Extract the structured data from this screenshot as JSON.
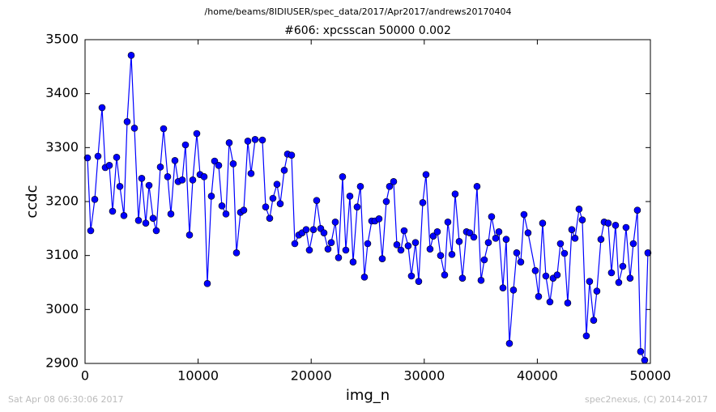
{
  "chart_data": {
    "type": "line",
    "suptitle": "/home/beams/8IDIUSER/spec_data/2017/Apr2017/andrews20170404",
    "title": "#606: xpcsscan 50000 0.002",
    "xlabel": "img_n",
    "ylabel": "ccdc",
    "footer_left": "Sat Apr 08 06:30:06 2017",
    "footer_right": "spec2nexus, (C) 2014-2017",
    "x": [
      215,
      501,
      860,
      1146,
      1504,
      1790,
      2149,
      2435,
      2793,
      3080,
      3438,
      3724,
      4083,
      4369,
      4727,
      5014,
      5372,
      5658,
      6017,
      6303,
      6661,
      6947,
      7306,
      7592,
      7950,
      8237,
      8595,
      8881,
      9240,
      9526,
      9884,
      10171,
      10529,
      10815,
      11173,
      11460,
      11818,
      12104,
      12463,
      12749,
      13108,
      13394,
      13752,
      14038,
      14397,
      14683,
      15041,
      15686,
      15972,
      16331,
      16617,
      16975,
      17262,
      17620,
      17906,
      18265,
      18551,
      18909,
      19196,
      19554,
      19840,
      20199,
      20485,
      20843,
      21130,
      21488,
      21774,
      22132,
      22419,
      22777,
      23063,
      23422,
      23708,
      24066,
      24353,
      24711,
      24997,
      25356,
      25642,
      26000,
      26287,
      26645,
      26931,
      27290,
      27576,
      27934,
      28221,
      28579,
      28865,
      29224,
      29510,
      29868,
      30155,
      30513,
      30799,
      31157,
      31444,
      31802,
      32088,
      32447,
      32733,
      33092,
      33378,
      33736,
      34022,
      34381,
      34667,
      35025,
      35312,
      35670,
      35956,
      36315,
      36601,
      36959,
      37246,
      37532,
      37890,
      38177,
      38535,
      38821,
      39180,
      39824,
      40111,
      40469,
      40755,
      41114,
      41400,
      41758,
      42045,
      42403,
      42689,
      43048,
      43334,
      43692,
      43979,
      44337,
      44623,
      44982,
      45268,
      45626,
      45913,
      46271,
      46557,
      46916,
      47202,
      47560,
      47846,
      48205,
      48491,
      48849,
      49136,
      49494,
      49780
    ],
    "series": [
      {
        "color": "#0000ff",
        "values": [
          3281,
          3146,
          3204,
          3284,
          3374,
          3263,
          3267,
          3182,
          3282,
          3228,
          3174,
          3348,
          3471,
          3336,
          3165,
          3243,
          3160,
          3230,
          3169,
          3146,
          3264,
          3335,
          3246,
          3177,
          3276,
          3237,
          3240,
          3305,
          3138,
          3240,
          3326,
          3250,
          3246,
          3048,
          3210,
          3275,
          3267,
          3192,
          3177,
          3309,
          3270,
          3105,
          3180,
          3184,
          3312,
          3252,
          3315,
          3314,
          3190,
          3169,
          3206,
          3232,
          3196,
          3258,
          3288,
          3286,
          3122,
          3138,
          3142,
          3148,
          3110,
          3148,
          3202,
          3150,
          3142,
          3112,
          3124,
          3162,
          3096,
          3246,
          3110,
          3210,
          3088,
          3190,
          3228,
          3060,
          3122,
          3164,
          3164,
          3168,
          3094,
          3200,
          3228,
          3237,
          3120,
          3110,
          3146,
          3118,
          3062,
          3124,
          3052,
          3198,
          3250,
          3112,
          3136,
          3144,
          3100,
          3064,
          3162,
          3102,
          3214,
          3126,
          3058,
          3144,
          3142,
          3134,
          3228,
          3054,
          3092,
          3124,
          3172,
          3132,
          3144,
          3040,
          3130,
          2937,
          3036,
          3105,
          3088,
          3176,
          3142,
          3072,
          3024,
          3160,
          3062,
          3014,
          3058,
          3064,
          3122,
          3104,
          3012,
          3148,
          3132,
          3186,
          3166,
          2951,
          3052,
          2980,
          3034,
          3130,
          3162,
          3160,
          3068,
          3156,
          3050,
          3080,
          3152,
          3058,
          3122,
          3184,
          2922,
          2906,
          3105
        ]
      }
    ],
    "xlim": [
      0,
      50000
    ],
    "ylim": [
      2900,
      3500
    ],
    "xticks": [
      0,
      10000,
      20000,
      30000,
      40000,
      50000
    ],
    "yticks": [
      2900,
      3000,
      3100,
      3200,
      3300,
      3400,
      3500
    ]
  }
}
